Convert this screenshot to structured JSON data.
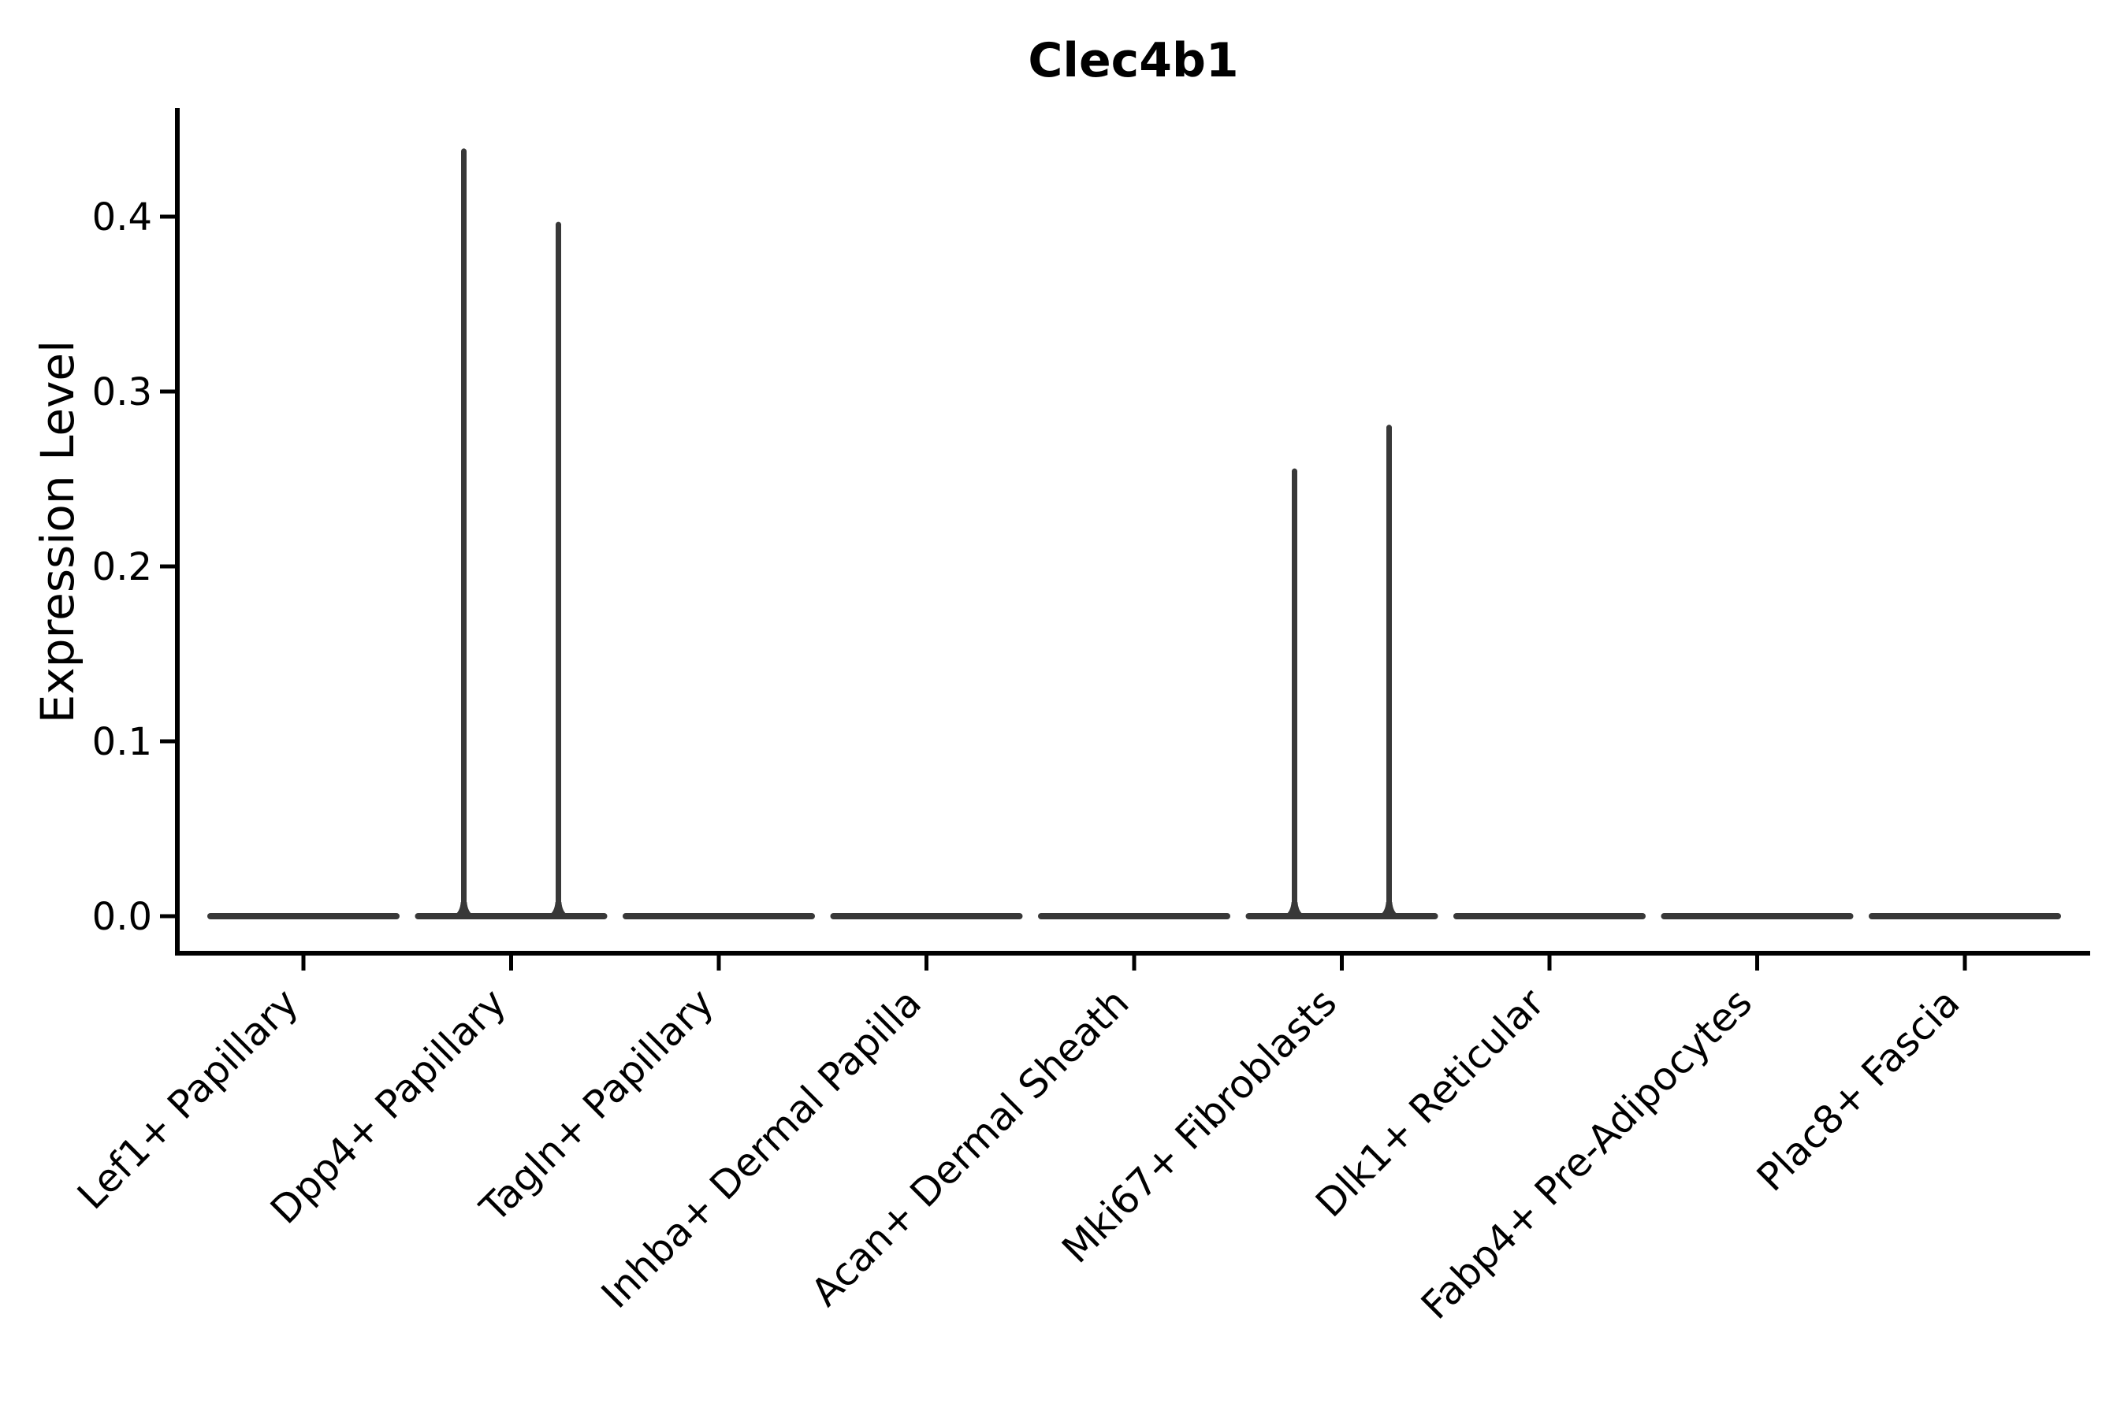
{
  "figure": {
    "title": "Clec4b1",
    "ylabel": "Expression Level"
  },
  "chart_data": {
    "type": "violin",
    "title": "Clec4b1",
    "xlabel": "",
    "ylabel": "Expression Level",
    "ylim": [
      0,
      0.46
    ],
    "yticks": [
      0.0,
      0.1,
      0.2,
      0.3,
      0.4
    ],
    "ytick_labels": [
      "0.0",
      "0.1",
      "0.2",
      "0.3",
      "0.4"
    ],
    "grid": false,
    "legend": null,
    "groups_per_category": 2,
    "categories": [
      "Lef1+ Papillary",
      "Dpp4+ Papillary",
      "Tagln+ Papillary",
      "Inhba+ Dermal Papilla",
      "Acan+ Dermal Sheath",
      "Mki67+ Fibroblasts",
      "Dlk1+ Reticular",
      "Fabp4+ Pre-Adipocytes",
      "Plac8+ Fascia"
    ],
    "violins": [
      {
        "category": "Lef1+ Papillary",
        "max_expression": [
          0,
          0
        ]
      },
      {
        "category": "Dpp4+ Papillary",
        "max_expression": [
          0.439,
          0.397
        ]
      },
      {
        "category": "Tagln+ Papillary",
        "max_expression": [
          0,
          0
        ]
      },
      {
        "category": "Inhba+ Dermal Papilla",
        "max_expression": [
          0,
          0
        ]
      },
      {
        "category": "Acan+ Dermal Sheath",
        "max_expression": [
          0,
          0
        ]
      },
      {
        "category": "Mki67+ Fibroblasts",
        "max_expression": [
          0.256,
          0.281
        ]
      },
      {
        "category": "Dlk1+ Reticular",
        "max_expression": [
          0,
          0
        ]
      },
      {
        "category": "Fabp4+ Pre-Adipocytes",
        "max_expression": [
          0,
          0
        ]
      },
      {
        "category": "Plac8+ Fascia",
        "max_expression": [
          0,
          0
        ]
      }
    ],
    "baseline_value": 0.0,
    "colors": {
      "violin_ink": "#383838",
      "axis": "#000000",
      "background": "#ffffff"
    }
  }
}
